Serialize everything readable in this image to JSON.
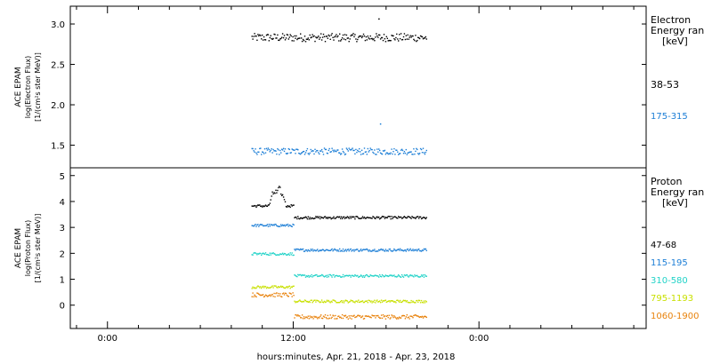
{
  "chart_data": [
    {
      "type": "scatter",
      "ylabel_lines": [
        "ACE EPAM",
        "log(Electron Flux)",
        "[1/(cm²s ster MeV)]"
      ],
      "ylim": [
        1.22,
        3.22
      ],
      "yticks": [
        1.5,
        2.0,
        2.5,
        3.0
      ],
      "ytick_labels": [
        "1.5",
        "2.0",
        "2.5",
        "3.0"
      ],
      "legend_title_lines": [
        "Electron",
        "Energy ran",
        "[keV]"
      ],
      "x_start_hours": 9.3,
      "x_end_hours": 20.6,
      "series": [
        {
          "name": "38-53",
          "color": "#000000",
          "baseline": 2.84,
          "amp": 0.05,
          "segments": [
            {
              "from": 9.3,
              "to": 20.6,
              "shift": 0.0
            }
          ],
          "spikes": [
            {
              "x": 17.5,
              "y": 3.07
            }
          ]
        },
        {
          "name": "175-315",
          "color": "#1c7ed6",
          "baseline": 1.43,
          "amp": 0.04,
          "segments": [
            {
              "from": 9.3,
              "to": 20.6,
              "shift": 0.0
            }
          ],
          "spikes": [
            {
              "x": 17.6,
              "y": 1.77
            }
          ]
        }
      ]
    },
    {
      "type": "scatter",
      "ylabel_lines": [
        "ACE EPAM",
        "log(Proton Flux)",
        "[1/(cm²s ster MeV)]"
      ],
      "ylim": [
        -0.9,
        5.3
      ],
      "yticks": [
        0,
        1,
        2,
        3,
        4,
        5
      ],
      "ytick_labels": [
        "0",
        "1",
        "2",
        "3",
        "4",
        "5"
      ],
      "legend_title_lines": [
        "Proton",
        "Energy ran",
        "[keV]"
      ],
      "x_start_hours": 9.3,
      "x_end_hours": 20.6,
      "series": [
        {
          "name": "47-68",
          "color": "#000000",
          "baseline": 3.85,
          "amp": 0.05,
          "segments": [
            {
              "from": 9.3,
              "to": 12.0,
              "shift": 0.0
            },
            {
              "from": 12.0,
              "to": 20.6,
              "shift": -0.45
            }
          ],
          "bump": {
            "from": 10.4,
            "to": 11.5,
            "height": 0.85
          }
        },
        {
          "name": "115-195",
          "color": "#1c7ed6",
          "baseline": 3.1,
          "amp": 0.05,
          "segments": [
            {
              "from": 9.3,
              "to": 12.0,
              "shift": 0.0
            },
            {
              "from": 12.0,
              "to": 20.6,
              "shift": -0.95
            }
          ]
        },
        {
          "name": "310-580",
          "color": "#22d3c8",
          "baseline": 2.0,
          "amp": 0.05,
          "segments": [
            {
              "from": 9.3,
              "to": 12.0,
              "shift": 0.0
            },
            {
              "from": 12.0,
              "to": 20.6,
              "shift": -0.85
            }
          ]
        },
        {
          "name": "795-1193",
          "color": "#c8e000",
          "baseline": 0.72,
          "amp": 0.05,
          "segments": [
            {
              "from": 9.3,
              "to": 12.0,
              "shift": 0.0
            },
            {
              "from": 12.0,
              "to": 20.6,
              "shift": -0.55
            }
          ]
        },
        {
          "name": "1060-1900",
          "color": "#e8820c",
          "baseline": 0.42,
          "amp": 0.08,
          "segments": [
            {
              "from": 9.3,
              "to": 12.0,
              "shift": 0.0
            },
            {
              "from": 12.0,
              "to": 20.6,
              "shift": -0.85
            }
          ]
        }
      ]
    }
  ],
  "x_axis": {
    "range_hours": [
      -2.4,
      34.8
    ],
    "ticks_hours": [
      0,
      12,
      24
    ],
    "tick_labels": [
      "0:00",
      "12:00",
      "0:00"
    ],
    "xlabel": "hours:minutes, Apr. 21, 2018 - Apr. 23, 2018"
  }
}
